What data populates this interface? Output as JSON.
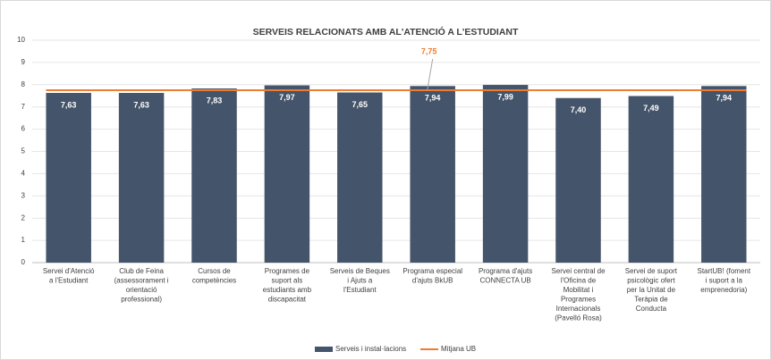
{
  "chart_data": {
    "type": "bar",
    "title": "SERVEIS RELACIONATS AMB AL'ATENCIÓ A L'ESTUDIANT",
    "categories": [
      "Servei d'Atenció a l'Estudiant",
      "Club de Feina (assessorament i orientació professional)",
      "Cursos de competències",
      "Programes de suport als estudiants amb discapacitat",
      "Serveis de Beques i Ajuts  a l'Estudiant",
      "Programa especial d'ajuts BkUB",
      "Programa d'ajuts CONNECTA UB",
      "Servei central de l'Oficina de Mobilitat i Programes Internacionals (Pavelló Rosa)",
      "Servei de suport psicològic ofert per la Unitat de Teràpia de Conducta",
      "StartUB! (foment i suport a la emprenedoria)"
    ],
    "series": [
      {
        "name": "Serveis i instal·lacions",
        "color": "#44546a",
        "values": [
          7.63,
          7.63,
          7.83,
          7.97,
          7.65,
          7.94,
          7.99,
          7.4,
          7.49,
          7.94
        ],
        "value_labels": [
          "7,63",
          "7,63",
          "7,83",
          "7,97",
          "7,65",
          "7,94",
          "7,99",
          "7,40",
          "7,49",
          "7,94"
        ]
      }
    ],
    "mean": {
      "name": "Mitjana UB",
      "color": "#ed7d31",
      "value": 7.75,
      "value_label": "7,75"
    },
    "ylim": [
      0,
      10
    ],
    "yticks": [
      0,
      1,
      2,
      3,
      4,
      5,
      6,
      7,
      8,
      9,
      10
    ],
    "grid": true
  }
}
